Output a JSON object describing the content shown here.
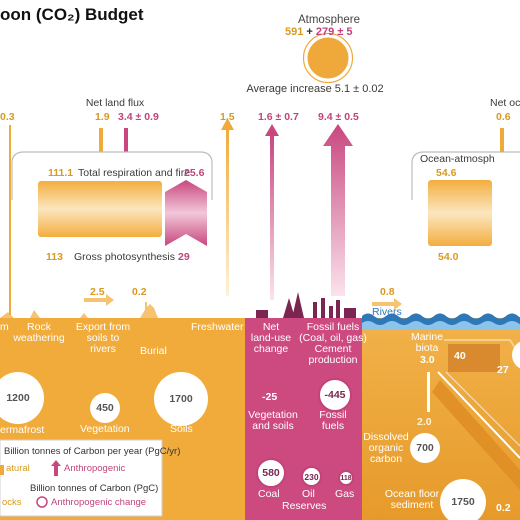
{
  "title": "oon (CO₂) Budget",
  "atmosphere": {
    "label": "Atmosphere",
    "stock_natural": "591",
    "plus": "+",
    "stock_anthro": "279 ± 5",
    "avg_increase": "Average increase 5.1 ± 0.02"
  },
  "land": {
    "edge_value": "0.3",
    "net_land_flux_label": "Net land flux",
    "net_land_flux_natural": "1.9",
    "net_land_flux_anthro": "3.4 ± 0.9",
    "freshwater_outgas": "1.5",
    "respiration_label": "Total respiration and fire",
    "respiration_natural": "111.1",
    "respiration_anthro": "25.6",
    "photosynthesis_label": "Gross photosynthesis",
    "photosynthesis_natural": "113",
    "photosynthesis_anthro": "29"
  },
  "anthropogenic": {
    "land_use_value": "1.6 ± 0.7",
    "fossil_value": "9.4 ± 0.5"
  },
  "ocean": {
    "net_ocean_label": "Net oc",
    "net_ocean_value": "0.6",
    "oa_label": "Ocean-atmosph",
    "oa_up": "54.6",
    "oa_down": "54.0",
    "rivers_label": "Rivers",
    "rivers_value": "0.8"
  },
  "surface_labels": {
    "m": "m",
    "rock": "Rock\nweathering",
    "export_value": "2.5",
    "export": "Export from\nsoils to\nrivers",
    "burial_value": "0.2",
    "burial": "Burial",
    "freshwater": "Freshwater",
    "land_use": "Net\nland-use\nchange",
    "fossil": "Fossil fuels\n(Coal, oil, gas)\nCement\nproduction"
  },
  "pools": {
    "permafrost_value": "1200",
    "permafrost_label": "ermafrost",
    "vegetation_value": "450",
    "vegetation_label": "Vegetation",
    "soils_value": "1700",
    "soils_label": "Soils",
    "veg_soil_change": "-25",
    "veg_soil_label": "Vegetation\nand soils",
    "fossil_change": "-445",
    "fossil_label": "Fossil\nfuels",
    "coal_value": "580",
    "coal_label": "Coal",
    "oil_value": "230",
    "oil_label": "Oil",
    "gas_value": "118",
    "gas_label": "Gas",
    "reserves_label": "Reserves",
    "marine_biota_label": "Marine\nbiota",
    "marine_biota_value": "3.0",
    "marine_flux_a": "40",
    "marine_flux_b": "27",
    "doc_flux": "2.0",
    "doc_label": "Dissolved\norganic\ncarbon",
    "doc_value": "700",
    "sediment_label": "Ocean floor\nsediment",
    "sediment_value": "1750",
    "sediment_flux": "0.2"
  },
  "legend": {
    "flux_title": "Billion tonnes of Carbon per year (PgC/yr)",
    "natural": "atural",
    "anthro": "Anthropogenic",
    "stock_title": "Billion tonnes of Carbon (PgC)",
    "stocks": "ocks",
    "anthro_change": "Anthropogenic change"
  },
  "colors": {
    "natural": "#f0aa3a",
    "anthropogenic": "#c8477f",
    "ground": "#f0ab3b",
    "ocean_top": "#2f78b8"
  }
}
